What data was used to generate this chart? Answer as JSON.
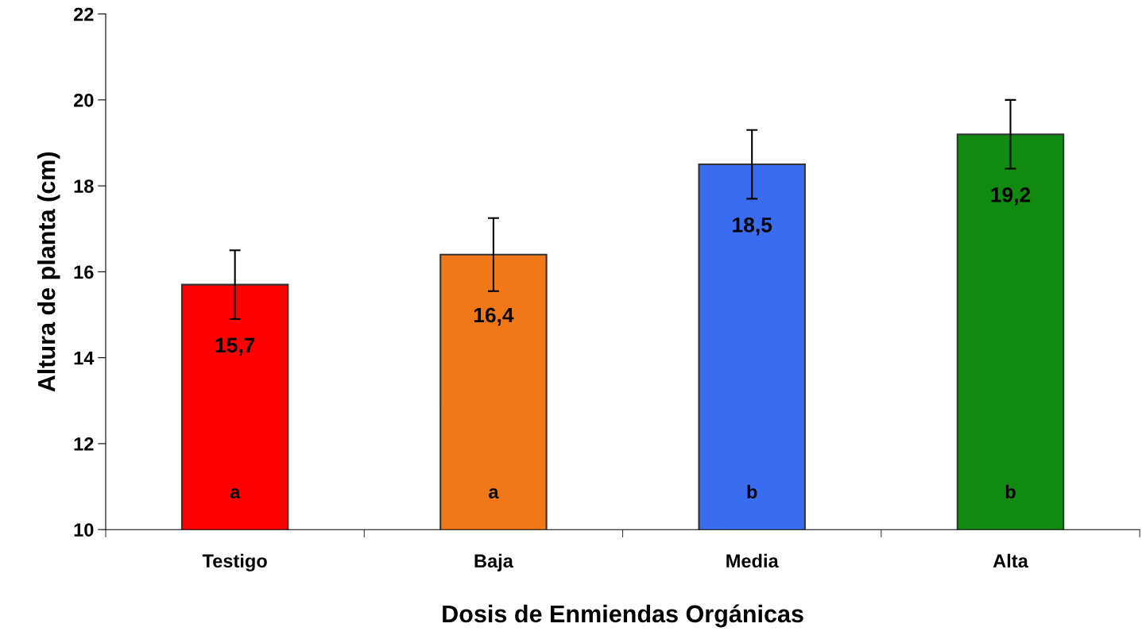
{
  "chart_data": {
    "type": "bar",
    "xlabel": "Dosis de Enmiendas Orgánicas",
    "ylabel": "Altura de planta (cm)",
    "categories": [
      "Testigo",
      "Baja",
      "Media",
      "Alta"
    ],
    "values": [
      15.7,
      16.4,
      18.5,
      19.2
    ],
    "colors": [
      "#ff0000",
      "#f07818",
      "#3a6cf0",
      "#108a10"
    ],
    "errors": [
      0.8,
      0.85,
      0.8,
      0.8
    ],
    "value_labels": [
      "15,7",
      "16,4",
      "18,5",
      "19,2"
    ],
    "annotations": [
      "a",
      "a",
      "b",
      "b"
    ],
    "ylim": [
      10,
      22
    ],
    "yticks": [
      10,
      12,
      14,
      16,
      18,
      20,
      22
    ],
    "grid": false,
    "legend": false
  }
}
